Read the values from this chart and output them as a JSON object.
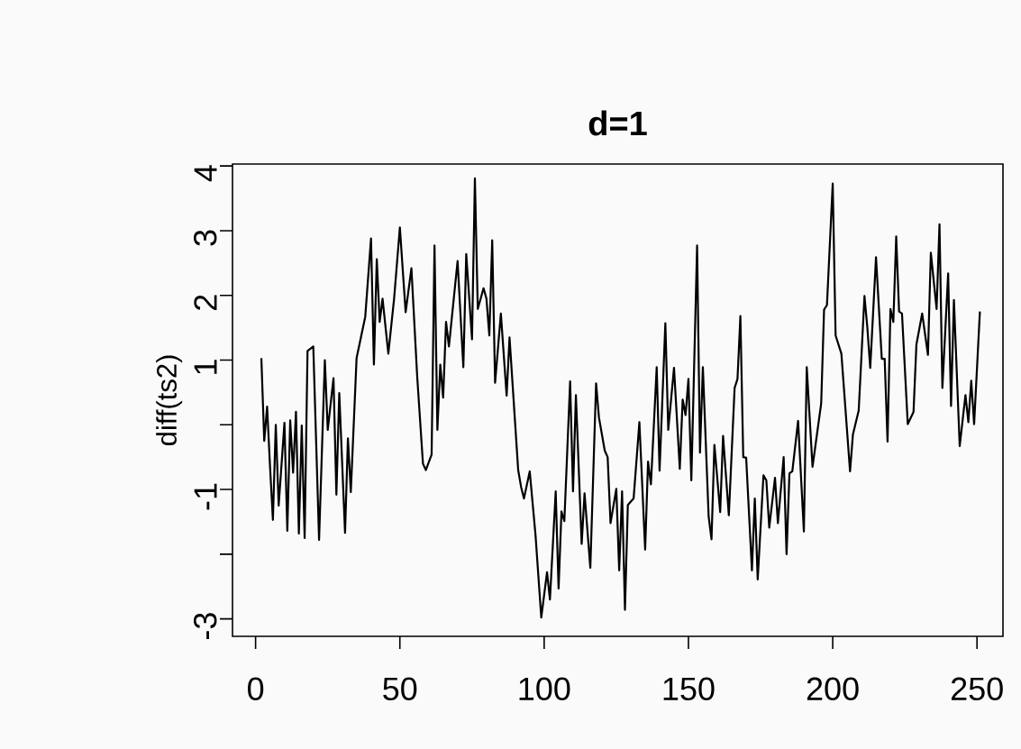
{
  "chart_data": {
    "type": "line",
    "title": "d=1",
    "ylabel": "diff(ts2)",
    "color": "#000000",
    "x": [
      2,
      3,
      4,
      5,
      6,
      7,
      8,
      10,
      11,
      12,
      13,
      14,
      15,
      16,
      17,
      18,
      20,
      22,
      24,
      25,
      27,
      28,
      29,
      31,
      32,
      33,
      35,
      38,
      40,
      41,
      42,
      43,
      44,
      46,
      48,
      50,
      52,
      54,
      56,
      58,
      59,
      61,
      62,
      63,
      64,
      65,
      66,
      67,
      70,
      72,
      73,
      75,
      76,
      77,
      79,
      80,
      81,
      82,
      83,
      85,
      87,
      88,
      91,
      92,
      93,
      95,
      97,
      99,
      101,
      102,
      104,
      105,
      106,
      107,
      109,
      110,
      111,
      113,
      114,
      116,
      118,
      119,
      121,
      122,
      123,
      125,
      126,
      127,
      128,
      129,
      131,
      133,
      135,
      136,
      137,
      139,
      140,
      142,
      143,
      145,
      147,
      148,
      149,
      150,
      151,
      153,
      154,
      155,
      157,
      158,
      159,
      161,
      162,
      164,
      166,
      167,
      168,
      169,
      170,
      172,
      173,
      174,
      176,
      177,
      178,
      180,
      181,
      183,
      184,
      185,
      186,
      188,
      190,
      191,
      193,
      196,
      197,
      198,
      200,
      201,
      203,
      206,
      207,
      209,
      211,
      212,
      213,
      215,
      217,
      218,
      219,
      220,
      221,
      222,
      223,
      224,
      226,
      228,
      229,
      231,
      233,
      234,
      236,
      237,
      238,
      240,
      241,
      242,
      244,
      246,
      247,
      248,
      249,
      251
    ],
    "values": [
      1.03,
      -0.25,
      0.28,
      -0.64,
      -1.47,
      0.0,
      -1.25,
      0.03,
      -1.64,
      0.07,
      -0.74,
      0.2,
      -1.68,
      -0.01,
      -1.75,
      1.14,
      1.21,
      -1.78,
      1.0,
      -0.08,
      0.72,
      -1.08,
      0.49,
      -1.67,
      -0.21,
      -1.04,
      1.03,
      1.67,
      2.88,
      0.93,
      2.56,
      1.59,
      1.95,
      1.1,
      1.95,
      3.05,
      1.74,
      2.42,
      0.75,
      -0.6,
      -0.7,
      -0.46,
      2.77,
      -0.08,
      0.93,
      0.42,
      1.59,
      1.21,
      2.53,
      0.89,
      2.64,
      1.32,
      3.81,
      1.79,
      2.11,
      1.95,
      1.38,
      2.85,
      0.65,
      1.72,
      0.45,
      1.35,
      -0.7,
      -0.96,
      -1.14,
      -0.72,
      -1.7,
      -2.98,
      -2.28,
      -2.7,
      -1.03,
      -2.53,
      -1.34,
      -1.49,
      0.67,
      -1.03,
      0.46,
      -1.84,
      -1.06,
      -2.21,
      0.64,
      0.11,
      -0.4,
      -0.5,
      -1.52,
      -0.99,
      -2.25,
      -1.03,
      -2.86,
      -1.24,
      -1.14,
      0.04,
      -1.93,
      -0.57,
      -0.92,
      0.89,
      -0.71,
      1.57,
      -0.08,
      0.88,
      -0.68,
      0.39,
      0.15,
      0.71,
      -0.86,
      2.77,
      -0.43,
      0.89,
      -1.42,
      -1.77,
      -0.31,
      -1.35,
      -0.17,
      -1.4,
      0.57,
      0.71,
      1.68,
      -0.5,
      -0.51,
      -2.25,
      -1.14,
      -2.39,
      -0.78,
      -0.86,
      -1.59,
      -0.82,
      -1.52,
      -0.5,
      -2.0,
      -0.75,
      -0.72,
      0.06,
      -1.65,
      0.89,
      -0.65,
      0.33,
      1.78,
      1.85,
      3.73,
      1.38,
      1.1,
      -0.72,
      -0.15,
      0.22,
      1.99,
      1.5,
      0.88,
      2.59,
      1.02,
      1.02,
      -0.26,
      1.79,
      1.59,
      2.91,
      1.75,
      1.72,
      0.01,
      0.2,
      1.24,
      1.72,
      1.08,
      2.66,
      1.79,
      3.1,
      0.57,
      2.34,
      0.29,
      1.93,
      -0.33,
      0.46,
      0.04,
      0.68,
      0.01,
      1.75
    ],
    "xlim": [
      -8,
      259
    ],
    "ylim": [
      -3.27,
      4.03
    ],
    "xticks": [
      0,
      50,
      100,
      150,
      200,
      250
    ],
    "yticks": [
      -3,
      {
        "value": -2,
        "label": null
      },
      -1,
      {
        "value": 0,
        "label": null
      },
      1,
      2,
      3,
      4
    ]
  }
}
